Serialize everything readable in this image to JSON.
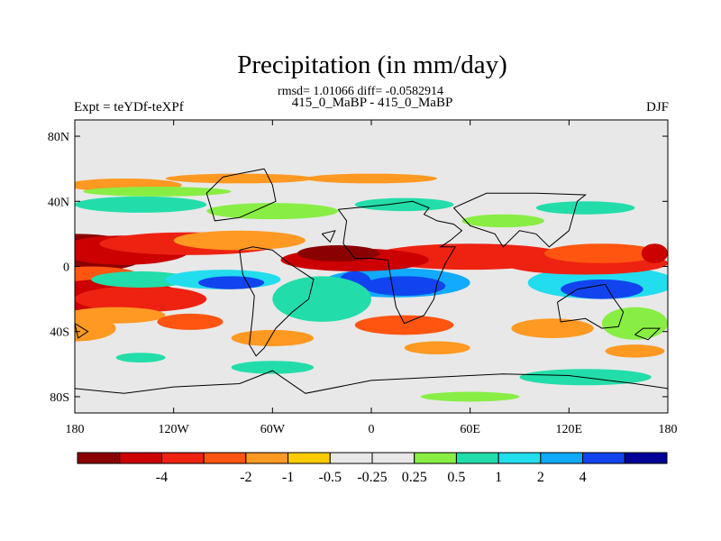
{
  "chart_data": {
    "type": "heatmap",
    "title": "Precipitation (in mm/day)",
    "stats_line": "rmsd= 1.01066 diff= -0.0582914",
    "subtitle": "415_0_MaBP - 415_0_MaBP",
    "left_label": "Expt = teYDf-teXPf",
    "right_label": "DJF",
    "x_range": [
      -180,
      180
    ],
    "y_range": [
      -90,
      90
    ],
    "x_ticks": [
      {
        "value": -180,
        "label": "180"
      },
      {
        "value": -120,
        "label": "120W"
      },
      {
        "value": -60,
        "label": "60W"
      },
      {
        "value": 0,
        "label": "0"
      },
      {
        "value": 60,
        "label": "60E"
      },
      {
        "value": 120,
        "label": "120E"
      },
      {
        "value": 180,
        "label": "180"
      }
    ],
    "y_ticks": [
      {
        "value": 80,
        "label": "80N"
      },
      {
        "value": 40,
        "label": "40N"
      },
      {
        "value": 0,
        "label": "0"
      },
      {
        "value": -40,
        "label": "40S"
      },
      {
        "value": -80,
        "label": "80S"
      }
    ],
    "colorbar": {
      "colors": [
        "#8b0000",
        "#cc0000",
        "#ee2211",
        "#ff5511",
        "#ff9922",
        "#ffcc00",
        "#e8e8e8",
        "#e8e8e8",
        "#88ee44",
        "#22ddaa",
        "#22ddee",
        "#11aaff",
        "#1144ee",
        "#000099"
      ],
      "labels": [
        "-4",
        "-2",
        "-1",
        "-0.5",
        "-0.25",
        "0.25",
        "0.5",
        "1",
        "2",
        "4"
      ],
      "label_boundaries": [
        2,
        4,
        5,
        6,
        7,
        8,
        9,
        10,
        11,
        12
      ]
    },
    "fields": [
      {
        "lon": -180,
        "lat": 8,
        "rlon": 45,
        "rlat": 12,
        "level": 0
      },
      {
        "lon": -150,
        "lat": 10,
        "rlon": 40,
        "rlat": 9,
        "level": 1
      },
      {
        "lon": -110,
        "lat": 14,
        "rlon": 55,
        "rlat": 7,
        "level": 2
      },
      {
        "lon": -80,
        "lat": 16,
        "rlon": 40,
        "rlat": 6,
        "level": 4
      },
      {
        "lon": -170,
        "lat": -6,
        "rlon": 30,
        "rlat": 6,
        "level": 3
      },
      {
        "lon": -160,
        "lat": -18,
        "rlon": 45,
        "rlat": 10,
        "level": 1
      },
      {
        "lon": -140,
        "lat": -20,
        "rlon": 40,
        "rlat": 8,
        "level": 2
      },
      {
        "lon": -155,
        "lat": -30,
        "rlon": 30,
        "rlat": 5,
        "level": 4
      },
      {
        "lon": -180,
        "lat": -38,
        "rlon": 25,
        "rlat": 8,
        "level": 4
      },
      {
        "lon": -110,
        "lat": -34,
        "rlon": 20,
        "rlat": 5,
        "level": 3
      },
      {
        "lon": -60,
        "lat": -44,
        "rlon": 25,
        "rlat": 5,
        "level": 4
      },
      {
        "lon": -150,
        "lat": 50,
        "rlon": 35,
        "rlat": 4,
        "level": 4
      },
      {
        "lon": -80,
        "lat": 54,
        "rlon": 45,
        "rlat": 3,
        "level": 4
      },
      {
        "lon": 0,
        "lat": 54,
        "rlon": 40,
        "rlat": 3,
        "level": 4
      },
      {
        "lon": -140,
        "lat": 38,
        "rlon": 40,
        "rlat": 5,
        "level": 9
      },
      {
        "lon": -60,
        "lat": 34,
        "rlon": 40,
        "rlat": 5,
        "level": 8
      },
      {
        "lon": 20,
        "lat": 38,
        "rlon": 30,
        "rlat": 4,
        "level": 9
      },
      {
        "lon": -130,
        "lat": 46,
        "rlon": 45,
        "rlat": 3,
        "level": 8
      },
      {
        "lon": -140,
        "lat": -8,
        "rlon": 30,
        "rlat": 5,
        "level": 9
      },
      {
        "lon": -90,
        "lat": -8,
        "rlon": 35,
        "rlat": 6,
        "level": 10
      },
      {
        "lon": -85,
        "lat": -10,
        "rlon": 20,
        "rlat": 4,
        "level": 12
      },
      {
        "lon": 15,
        "lat": -10,
        "rlon": 45,
        "rlat": 9,
        "level": 11
      },
      {
        "lon": 20,
        "lat": -12,
        "rlon": 25,
        "rlat": 6,
        "level": 12
      },
      {
        "lon": -10,
        "lat": -10,
        "rlon": 10,
        "rlat": 7,
        "level": 12
      },
      {
        "lon": -30,
        "lat": -20,
        "rlon": 30,
        "rlat": 14,
        "level": 9
      },
      {
        "lon": 140,
        "lat": -10,
        "rlon": 45,
        "rlat": 10,
        "level": 10
      },
      {
        "lon": 140,
        "lat": -14,
        "rlon": 25,
        "rlat": 6,
        "level": 12
      },
      {
        "lon": 160,
        "lat": -35,
        "rlon": 20,
        "rlat": 10,
        "level": 8
      },
      {
        "lon": 60,
        "lat": 6,
        "rlon": 60,
        "rlat": 8,
        "level": 2
      },
      {
        "lon": 130,
        "lat": 2,
        "rlon": 50,
        "rlat": 7,
        "level": 2
      },
      {
        "lon": 140,
        "lat": 8,
        "rlon": 35,
        "rlat": 6,
        "level": 3
      },
      {
        "lon": 172,
        "lat": 8,
        "rlon": 8,
        "rlat": 6,
        "level": 1
      },
      {
        "lon": -10,
        "lat": 4,
        "rlon": 45,
        "rlat": 7,
        "level": 1
      },
      {
        "lon": -20,
        "lat": 8,
        "rlon": 25,
        "rlat": 5,
        "level": 0
      },
      {
        "lon": 20,
        "lat": -36,
        "rlon": 30,
        "rlat": 6,
        "level": 3
      },
      {
        "lon": 40,
        "lat": -50,
        "rlon": 20,
        "rlat": 4,
        "level": 4
      },
      {
        "lon": 110,
        "lat": -38,
        "rlon": 25,
        "rlat": 6,
        "level": 4
      },
      {
        "lon": 160,
        "lat": -52,
        "rlon": 18,
        "rlat": 4,
        "level": 4
      },
      {
        "lon": 130,
        "lat": -68,
        "rlon": 40,
        "rlat": 5,
        "level": 9
      },
      {
        "lon": -60,
        "lat": -62,
        "rlon": 25,
        "rlat": 4,
        "level": 9
      },
      {
        "lon": 60,
        "lat": -80,
        "rlon": 30,
        "rlat": 3,
        "level": 8
      },
      {
        "lon": 130,
        "lat": 36,
        "rlon": 30,
        "rlat": 4,
        "level": 9
      },
      {
        "lon": 80,
        "lat": 28,
        "rlon": 25,
        "rlat": 4,
        "level": 8
      },
      {
        "lon": -140,
        "lat": -56,
        "rlon": 15,
        "rlat": 3,
        "level": 9
      }
    ],
    "coastlines": [
      [
        [
          -20,
          35
        ],
        [
          10,
          38
        ],
        [
          25,
          40
        ],
        [
          35,
          36
        ],
        [
          32,
          32
        ],
        [
          40,
          28
        ],
        [
          50,
          26
        ],
        [
          55,
          22
        ],
        [
          48,
          16
        ],
        [
          42,
          12
        ],
        [
          51,
          12
        ],
        [
          45,
          2
        ],
        [
          40,
          -10
        ],
        [
          38,
          -20
        ],
        [
          32,
          -30
        ],
        [
          20,
          -35
        ],
        [
          15,
          -25
        ],
        [
          12,
          -8
        ],
        [
          10,
          4
        ],
        [
          0,
          5
        ],
        [
          -10,
          5
        ],
        [
          -17,
          14
        ],
        [
          -15,
          28
        ],
        [
          -20,
          35
        ]
      ],
      [
        [
          -80,
          10
        ],
        [
          -72,
          12
        ],
        [
          -60,
          10
        ],
        [
          -50,
          2
        ],
        [
          -35,
          -8
        ],
        [
          -38,
          -20
        ],
        [
          -48,
          -28
        ],
        [
          -58,
          -38
        ],
        [
          -65,
          -50
        ],
        [
          -70,
          -55
        ],
        [
          -74,
          -48
        ],
        [
          -72,
          -30
        ],
        [
          -71,
          -18
        ],
        [
          -78,
          -5
        ],
        [
          -80,
          10
        ]
      ],
      [
        [
          113,
          -22
        ],
        [
          125,
          -14
        ],
        [
          136,
          -12
        ],
        [
          142,
          -11
        ],
        [
          146,
          -18
        ],
        [
          153,
          -28
        ],
        [
          150,
          -37
        ],
        [
          140,
          -38
        ],
        [
          130,
          -32
        ],
        [
          115,
          -34
        ],
        [
          113,
          -22
        ]
      ],
      [
        [
          -65,
          60
        ],
        [
          -60,
          50
        ],
        [
          -58,
          40
        ],
        [
          -80,
          30
        ],
        [
          -95,
          28
        ],
        [
          -100,
          45
        ],
        [
          -90,
          55
        ],
        [
          -65,
          60
        ]
      ],
      [
        [
          50,
          36
        ],
        [
          60,
          25
        ],
        [
          75,
          20
        ],
        [
          80,
          12
        ],
        [
          90,
          22
        ],
        [
          100,
          20
        ],
        [
          108,
          12
        ],
        [
          120,
          22
        ],
        [
          125,
          40
        ],
        [
          130,
          44
        ],
        [
          100,
          45
        ],
        [
          70,
          45
        ],
        [
          50,
          36
        ]
      ],
      [
        [
          -180,
          -75
        ],
        [
          -150,
          -78
        ],
        [
          -120,
          -74
        ],
        [
          -80,
          -72
        ],
        [
          -60,
          -64
        ],
        [
          -40,
          -78
        ],
        [
          0,
          -70
        ],
        [
          40,
          -68
        ],
        [
          80,
          -66
        ],
        [
          120,
          -67
        ],
        [
          160,
          -72
        ],
        [
          180,
          -75
        ]
      ],
      [
        [
          -180,
          -35
        ],
        [
          -172,
          -40
        ],
        [
          -178,
          -44
        ],
        [
          -180,
          -35
        ]
      ],
      [
        [
          160,
          -42
        ],
        [
          168,
          -45
        ],
        [
          175,
          -38
        ],
        [
          165,
          -38
        ],
        [
          160,
          -42
        ]
      ],
      [
        [
          -30,
          20
        ],
        [
          -22,
          22
        ],
        [
          -25,
          15
        ],
        [
          -30,
          20
        ]
      ]
    ]
  }
}
